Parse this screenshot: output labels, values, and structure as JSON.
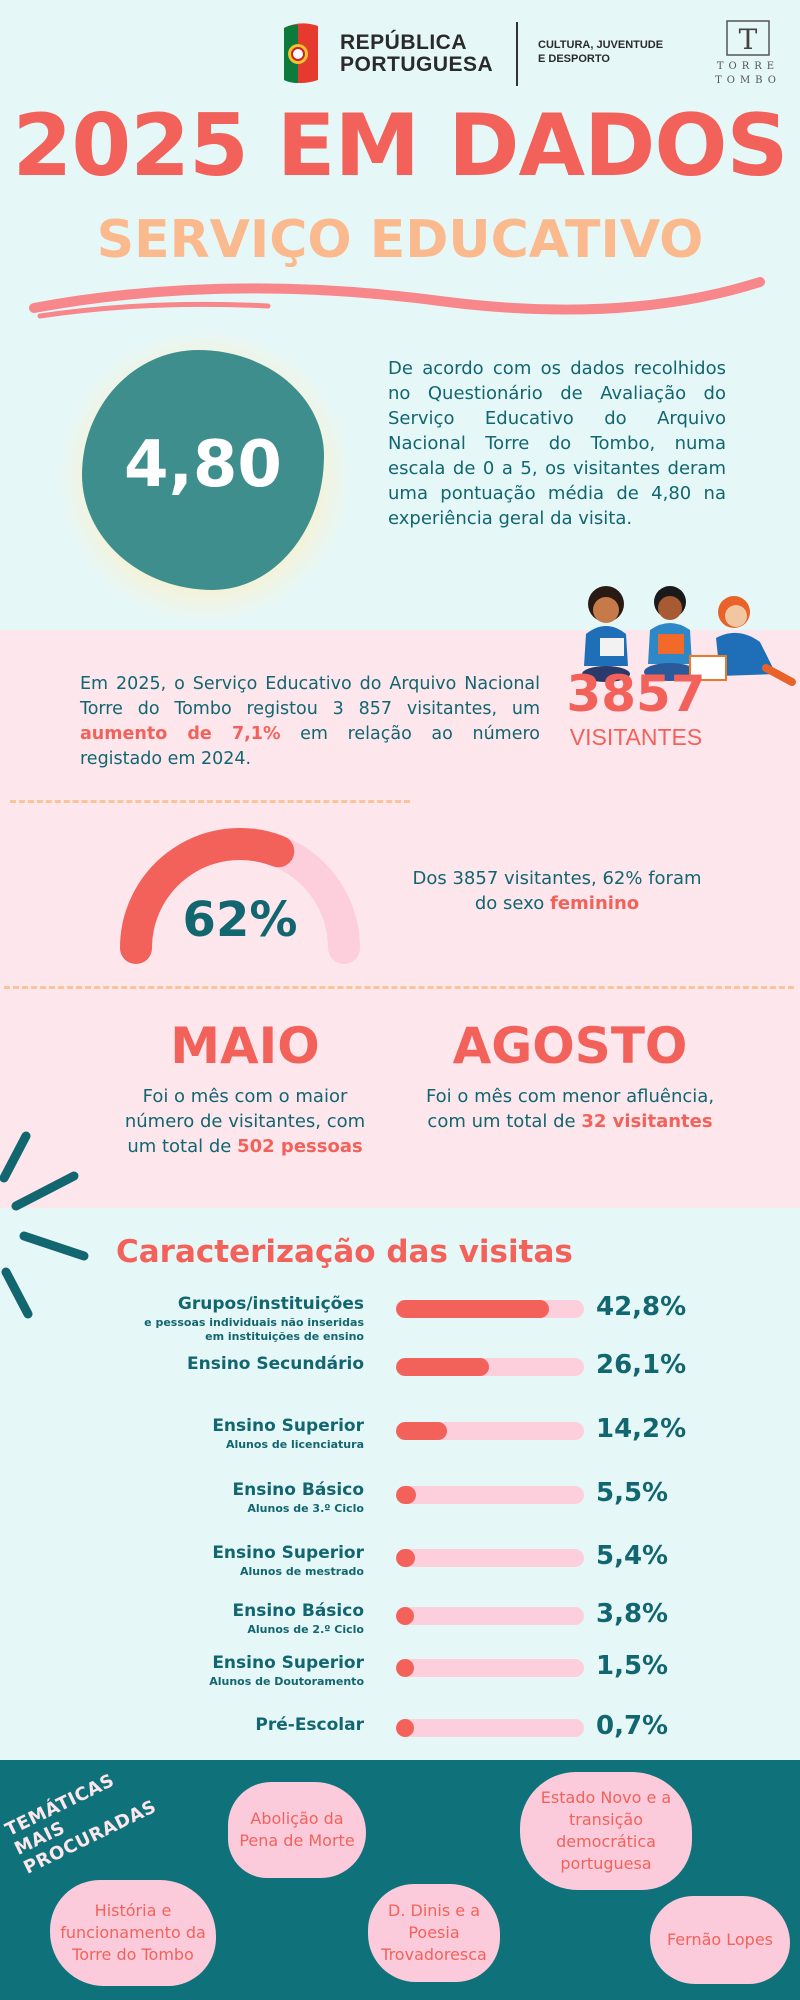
{
  "header": {
    "gov_name_line1": "REPÚBLICA",
    "gov_name_line2": "PORTUGUESA",
    "ministry_line1": "CULTURA, JUVENTUDE",
    "ministry_line2": "E DESPORTO",
    "archive_logo_letter": "T",
    "archive_name_line1": "TORRE",
    "archive_name_line2": "TOMBO"
  },
  "title": "2025 EM DADOS",
  "subtitle": "SERVIÇO EDUCATIVO",
  "score": {
    "value": "4,80",
    "description": "De acordo com os dados recolhidos no Questionário de Avaliação do Serviço Educativo do Arquivo Nacional Torre do Tombo, numa escala de 0 a 5, os visitantes deram uma pontuação média de 4,80 na experiência geral da visita."
  },
  "visitors": {
    "text_before": "Em 2025, o Serviço Educativo do Arquivo Nacional Torre do Tombo registou 3 857 visitantes, um ",
    "highlight": "aumento de 7,1%",
    "text_after": " em relação ao número registado em 2024.",
    "number": "3857",
    "label": "VISITANTES"
  },
  "gender": {
    "percent_label": "62%",
    "fraction": 0.62,
    "text_before": "Dos 3857 visitantes, 62% foram do sexo ",
    "highlight": "feminino"
  },
  "months": {
    "max": {
      "name": "MAIO",
      "text_before": "Foi o mês com o maior número de visitantes, com um total de ",
      "highlight": "502 pessoas"
    },
    "min": {
      "name": "AGOSTO",
      "text_before": "Foi o mês com menor afluência, com um total de ",
      "highlight": "32 visitantes"
    }
  },
  "chart_data": {
    "type": "bar",
    "title": "Caracterização das visitas",
    "categories": [
      "Grupos/instituições",
      "Ensino Secundário",
      "Ensino Superior",
      "Ensino Básico",
      "Ensino Superior",
      "Ensino Básico",
      "Ensino Superior",
      "Pré-Escolar"
    ],
    "subcategories": [
      "e pessoas individuais não inseridas em instituições de ensino",
      "",
      "Alunos de licenciatura",
      "Alunos de 3.º Ciclo",
      "Alunos de mestrado",
      "Alunos de 2.º Ciclo",
      "Alunos de Doutoramento",
      ""
    ],
    "values": [
      42.8,
      26.1,
      14.2,
      5.5,
      5.4,
      3.8,
      1.5,
      0.7
    ],
    "value_labels": [
      "42,8%",
      "26,1%",
      "14,2%",
      "5,5%",
      "5,4%",
      "3,8%",
      "1,5%",
      "0,7%"
    ],
    "ylim": [
      0,
      100
    ]
  },
  "themes": {
    "label_line1": "TEMÁTICAS",
    "label_line2": "MAIS PROCURADAS",
    "items": [
      "Abolição da Pena de Morte",
      "Estado Novo e a transição democrática portuguesa",
      "História e funcionamento da Torre do Tombo",
      "D. Dinis e a Poesia Trovadoresca",
      "Fernão Lopes"
    ]
  },
  "colors": {
    "accent": "#f2625a",
    "teal": "#126670",
    "peach": "#fbb98e",
    "pink_bg": "#fde6ec",
    "mint_bg": "#e6f7f8",
    "theme_bg": "#0f727a"
  }
}
